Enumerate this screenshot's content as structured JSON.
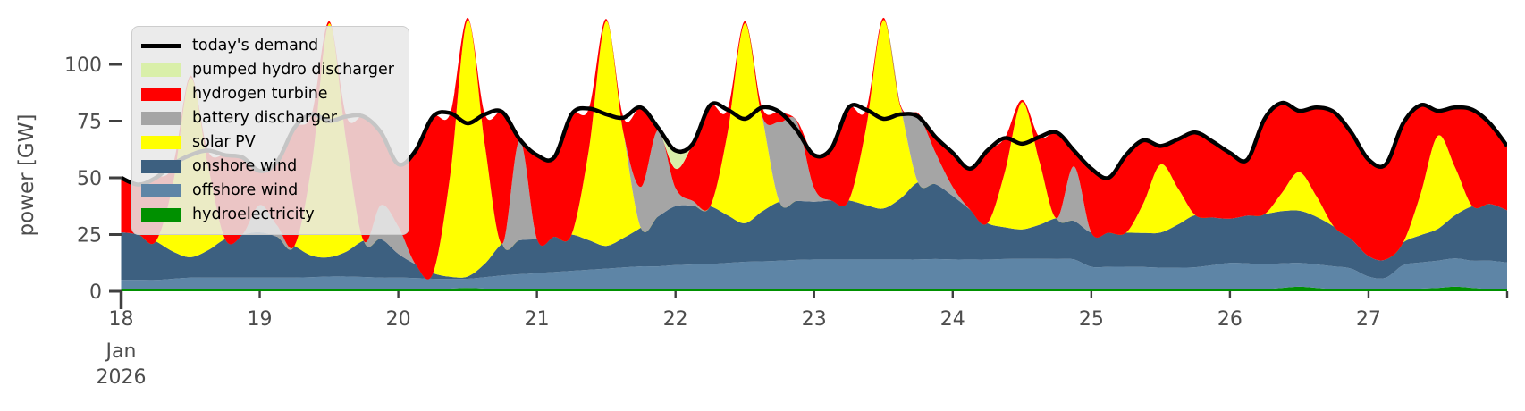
{
  "figure": {
    "tick_color": "#3f3f3f",
    "text_color": "#4d4d4d",
    "background": "#ffffff"
  },
  "chart_data": {
    "type": "area",
    "stacked": true,
    "title": "",
    "xlabel": "",
    "ylabel": "power [GW]",
    "x_unit": "days of January 2026, 3-hour resolution",
    "x_start_day": 18,
    "x_step_days": 0.125,
    "n_points": 81,
    "x_end_day": 28,
    "ylim": [
      0,
      122
    ],
    "grid": false,
    "legend_position": "upper left",
    "yticks": [
      0,
      25,
      50,
      75,
      100
    ],
    "xticks": [
      {
        "day": 18,
        "label": "18",
        "major": true
      },
      {
        "day": 19,
        "label": "19",
        "major": false
      },
      {
        "day": 20,
        "label": "20",
        "major": false
      },
      {
        "day": 21,
        "label": "21",
        "major": false
      },
      {
        "day": 22,
        "label": "22",
        "major": false
      },
      {
        "day": 23,
        "label": "23",
        "major": false
      },
      {
        "day": 24,
        "label": "24",
        "major": false
      },
      {
        "day": 25,
        "label": "25",
        "major": false
      },
      {
        "day": 26,
        "label": "26",
        "major": false
      },
      {
        "day": 27,
        "label": "27",
        "major": false
      },
      {
        "day": 28,
        "label": "",
        "major": false
      }
    ],
    "x_offset": {
      "line1": "Jan",
      "line2": "2026"
    },
    "demand": {
      "name": "today's demand",
      "color": "#000000",
      "values": [
        50,
        47,
        50,
        56,
        60,
        62,
        60,
        59,
        53,
        57,
        72,
        78,
        75,
        77,
        77,
        70,
        56,
        62,
        77,
        78.5,
        74,
        78,
        79,
        67,
        60,
        59,
        78,
        80.5,
        78,
        76.5,
        81,
        72,
        62,
        65,
        82,
        80,
        76,
        81,
        79,
        71,
        60,
        63,
        81,
        80,
        76,
        78,
        77,
        68,
        61,
        54,
        62,
        67.5,
        65,
        68,
        70,
        62,
        54,
        50,
        60,
        66.5,
        64,
        67,
        70,
        66,
        61,
        58,
        76,
        83,
        79.5,
        81,
        79,
        70,
        58,
        56,
        74,
        82,
        79.5,
        81,
        80,
        74,
        64
      ]
    },
    "series": [
      {
        "name": "hydroelectricity",
        "color": "#009000",
        "values": [
          1,
          1,
          1,
          1,
          1,
          1,
          1,
          1,
          1,
          1,
          1,
          1,
          1,
          1,
          1,
          1,
          1,
          1,
          1,
          1.2,
          1.5,
          1.2,
          1,
          1,
          1,
          1,
          1,
          1,
          1,
          1,
          1,
          1,
          1,
          1,
          1,
          1,
          1,
          1,
          1,
          1,
          1,
          1,
          1,
          1,
          1,
          1,
          1,
          1,
          1,
          1,
          1,
          1,
          1,
          1,
          1,
          1,
          1,
          1,
          1,
          1,
          1,
          1,
          1,
          1,
          1,
          1,
          1,
          1.5,
          2,
          1.5,
          1,
          1,
          1,
          1,
          1,
          1.2,
          1.5,
          2,
          1.5,
          1,
          1
        ]
      },
      {
        "name": "offshore wind",
        "color": "#5e85a6",
        "values": [
          4,
          4,
          4,
          4.5,
          5,
          5,
          5,
          5,
          5,
          5,
          5,
          5.2,
          5.5,
          5.5,
          5.3,
          5,
          5,
          4.8,
          4.5,
          4.2,
          4,
          5,
          6,
          6.5,
          7,
          7.5,
          8,
          8.5,
          9,
          9.5,
          10,
          10,
          10.5,
          10.8,
          11,
          11.5,
          12,
          12.2,
          12.5,
          12.8,
          13,
          13,
          13,
          13,
          13,
          13,
          13,
          13.2,
          13,
          13,
          13,
          13.2,
          13.3,
          13.3,
          13.2,
          13,
          9.8,
          9.8,
          9.8,
          9.7,
          9.4,
          9.4,
          9.6,
          10.5,
          11.5,
          11.3,
          11,
          10.8,
          10.5,
          10.3,
          10,
          9,
          5.5,
          5,
          10.5,
          11.5,
          12,
          12.5,
          12,
          12.5,
          11.7
        ]
      },
      {
        "name": "onshore wind",
        "color": "#3d6080",
        "values": [
          21,
          20,
          17,
          12,
          9,
          12,
          17,
          19,
          20,
          18,
          14,
          9.5,
          8.5,
          11,
          16,
          17,
          10.5,
          6,
          2.5,
          1,
          1,
          6,
          14,
          15,
          15,
          15.5,
          16,
          13,
          10,
          13,
          17,
          22,
          26,
          26,
          25.5,
          21,
          17,
          22,
          26,
          26,
          25.5,
          26,
          26,
          24,
          22.5,
          27,
          34,
          33,
          28,
          22,
          16,
          14,
          13,
          15,
          18,
          17,
          15,
          15,
          15,
          15,
          15.5,
          19,
          23,
          21,
          19.5,
          21,
          22,
          23,
          23,
          21,
          17.5,
          13,
          9,
          8,
          10,
          12,
          14,
          19,
          24,
          25,
          23
        ]
      },
      {
        "name": "solar PV",
        "color": "#ffff00",
        "values": [
          0,
          0,
          0,
          30,
          79,
          38,
          0,
          0,
          0,
          0,
          0,
          40,
          103,
          48,
          0,
          0,
          0,
          0,
          0,
          45,
          113,
          52,
          0,
          0,
          0,
          0,
          0,
          40,
          99,
          46,
          0,
          0,
          0,
          0,
          0,
          36,
          88,
          42,
          0,
          0,
          0,
          0,
          0,
          34,
          83,
          40,
          0,
          0,
          0,
          0,
          0,
          24,
          56,
          28,
          0,
          0,
          0,
          0,
          0,
          13,
          30,
          16,
          0,
          0,
          0,
          0,
          0,
          8,
          17,
          9,
          0,
          0,
          0,
          0,
          0,
          18,
          41,
          21,
          0,
          0,
          0
        ]
      },
      {
        "name": "battery discharger",
        "color": "#a5a5a5",
        "values": [
          0,
          0,
          0,
          0,
          0,
          0,
          0,
          0,
          12,
          5,
          0,
          0,
          0,
          0,
          0,
          15,
          12,
          0,
          0,
          0,
          0,
          0,
          0,
          44,
          0,
          0,
          0,
          0,
          0,
          0,
          18,
          38,
          8,
          2,
          0,
          0,
          0,
          0,
          35,
          35,
          6,
          0,
          0,
          0,
          0,
          0,
          30,
          14,
          4,
          0,
          0,
          0,
          0,
          0,
          0,
          24,
          0,
          0,
          0,
          0,
          0,
          0,
          0,
          0,
          0,
          0,
          0,
          0,
          0,
          0,
          0,
          0,
          0,
          0,
          0,
          0,
          0,
          0,
          0,
          0,
          0
        ]
      },
      {
        "name": "hydrogen turbine",
        "color": "#ff0000",
        "values": [
          24,
          22,
          28,
          8.5,
          1,
          6,
          37,
          34,
          15,
          28,
          52,
          22.3,
          1,
          11.5,
          54.7,
          32,
          27.5,
          50.2,
          69,
          27.1,
          1,
          13.8,
          58,
          0.5,
          37,
          35,
          53,
          18,
          1,
          7,
          35,
          1,
          8.5,
          25.2,
          44.5,
          10.5,
          1,
          3.8,
          4.5,
          0.5,
          14.5,
          23,
          41,
          8,
          1,
          0.8,
          0.5,
          6.8,
          15,
          18,
          32,
          15.3,
          1,
          10.7,
          37.8,
          7,
          28.2,
          24.2,
          34.2,
          27.8,
          8.1,
          21.6,
          36.4,
          33.5,
          29,
          24.7,
          42,
          39.7,
          27,
          39.2,
          50.5,
          47,
          42.5,
          42,
          52.5,
          39.3,
          11,
          26.5,
          42.5,
          35.5,
          28.3
        ]
      },
      {
        "name": "pumped hydro discharger",
        "color": "#d9efa9",
        "values": [
          0,
          0,
          0,
          0,
          0,
          0,
          0,
          0,
          0,
          0,
          0,
          0,
          0,
          0,
          0,
          0,
          0,
          0,
          0,
          0,
          0,
          0,
          0,
          0,
          0,
          0,
          0,
          0,
          0,
          0,
          0,
          0,
          8,
          0,
          0,
          0,
          0,
          0,
          0,
          0,
          0,
          0,
          0,
          0,
          0,
          0,
          0,
          0,
          0,
          0,
          0,
          0,
          0,
          0,
          0,
          0,
          0,
          0,
          0,
          0,
          0,
          0,
          0,
          0,
          0,
          0,
          0,
          0,
          0,
          0,
          0,
          0,
          0,
          0,
          0,
          0,
          0,
          0,
          0,
          0,
          0
        ]
      }
    ],
    "legend": [
      {
        "label": "today's demand",
        "type": "line",
        "color": "#000000"
      },
      {
        "label": "pumped hydro discharger",
        "type": "patch",
        "color": "#d9efa9"
      },
      {
        "label": "hydrogen turbine",
        "type": "patch",
        "color": "#ff0000"
      },
      {
        "label": "battery discharger",
        "type": "patch",
        "color": "#a5a5a5"
      },
      {
        "label": "solar PV",
        "type": "patch",
        "color": "#ffff00"
      },
      {
        "label": "onshore wind",
        "type": "patch",
        "color": "#3d6080"
      },
      {
        "label": "offshore wind",
        "type": "patch",
        "color": "#5e85a6"
      },
      {
        "label": "hydroelectricity",
        "type": "patch",
        "color": "#009000"
      }
    ]
  }
}
